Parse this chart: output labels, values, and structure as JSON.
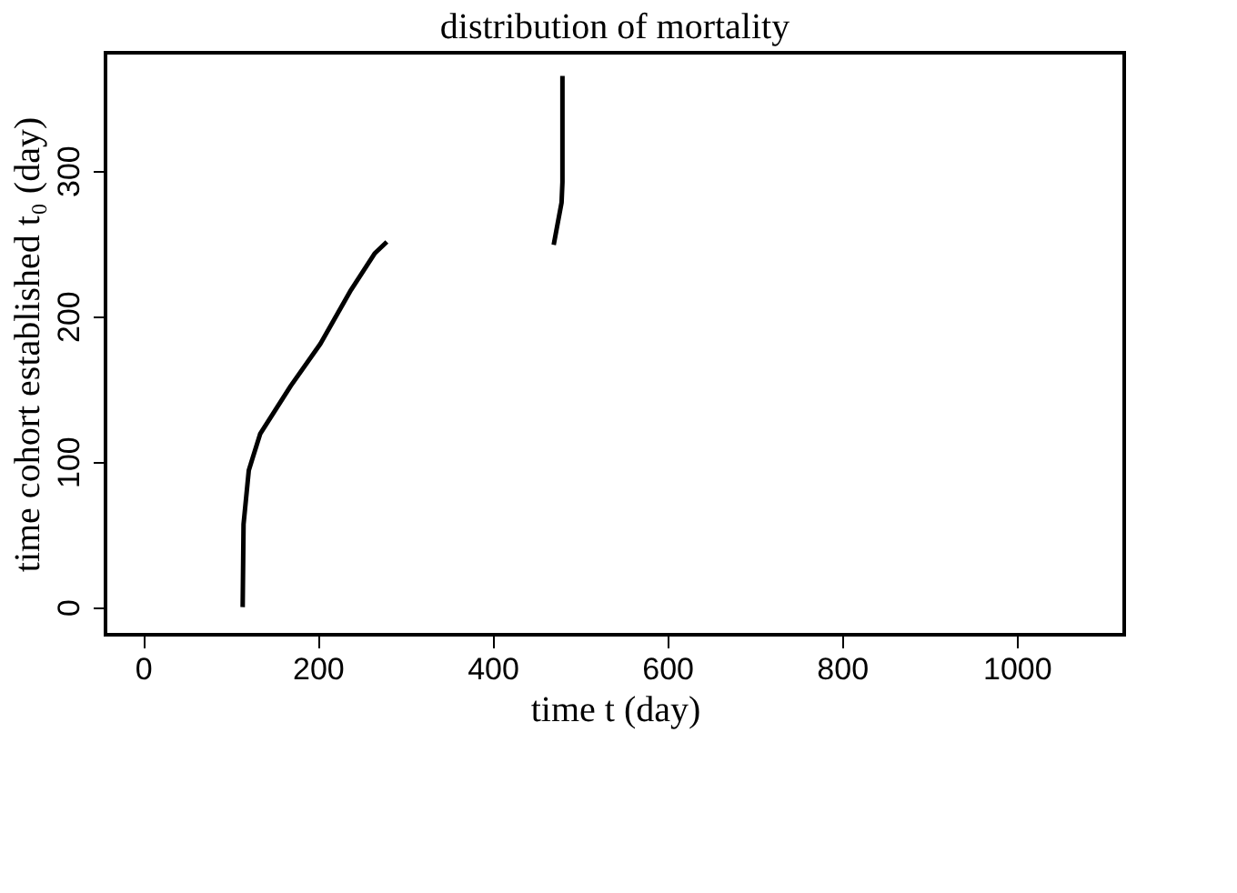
{
  "chart_data": {
    "type": "line",
    "title": "distribution of mortality",
    "xlabel": "time t (day)",
    "ylabel": "time cohort established t₀ (day)",
    "series": [
      {
        "color": "#000000",
        "x": [
          114,
          115,
          121,
          134,
          169,
          203,
          238,
          265,
          279
        ],
        "values": [
          0,
          57,
          94,
          119,
          152,
          181,
          218,
          243,
          251
        ]
      },
      {
        "color": "#000000",
        "x": [
          470,
          479,
          480,
          480
        ],
        "values": [
          249,
          278,
          292,
          365
        ]
      }
    ],
    "xlim": [
      -43,
      1123
    ],
    "ylim": [
      -19,
      381
    ],
    "xticks": [
      0,
      200,
      400,
      600,
      800,
      1000
    ],
    "yticks": [
      0,
      100,
      200,
      300
    ],
    "grid": false,
    "legend": false,
    "line_style": "solid",
    "marker": "none"
  }
}
